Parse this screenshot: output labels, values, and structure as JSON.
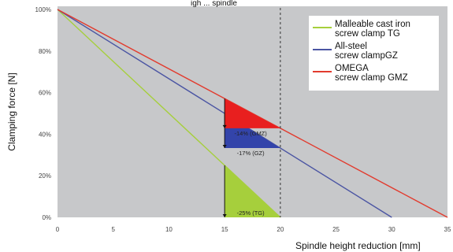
{
  "chart_data": {
    "type": "line",
    "title_fragment": "igh ... spindle",
    "xlabel": "Spindle height reduction [mm]",
    "ylabel": "Clamping force [N]",
    "xlim": [
      0,
      35
    ],
    "ylim": [
      0,
      100
    ],
    "x_ticks": [
      "0",
      "5",
      "10",
      "15",
      "20",
      "25",
      "30",
      "35"
    ],
    "y_ticks": [
      "0%",
      "20%",
      "40%",
      "60%",
      "80%",
      "100%"
    ],
    "grid": false,
    "reference_line_x": 20,
    "legend_position": "top-right",
    "series": [
      {
        "name": "Malleable cast iron\nscrew clamp TG",
        "color": "#a6cf3c",
        "x": [
          0,
          20
        ],
        "y": [
          100,
          0
        ]
      },
      {
        "name": "All-steel\nscrew clampGZ",
        "color": "#4b55a3",
        "x": [
          0,
          30
        ],
        "y": [
          100,
          0
        ]
      },
      {
        "name": "OMEGA\nscrew clamp GMZ",
        "color": "#e23b2e",
        "x": [
          0,
          35
        ],
        "y": [
          100,
          0
        ]
      }
    ],
    "triangles": [
      {
        "series": 0,
        "x0": 15,
        "x1": 20,
        "label": "-25% (TG)",
        "color": "#a6cf3c"
      },
      {
        "series": 1,
        "x0": 15,
        "x1": 20,
        "label": "-17% (GZ)",
        "color": "#3344aa"
      },
      {
        "series": 2,
        "x0": 15,
        "x1": 20,
        "label": "-14% (GMZ)",
        "color": "#e81f1f"
      }
    ]
  }
}
